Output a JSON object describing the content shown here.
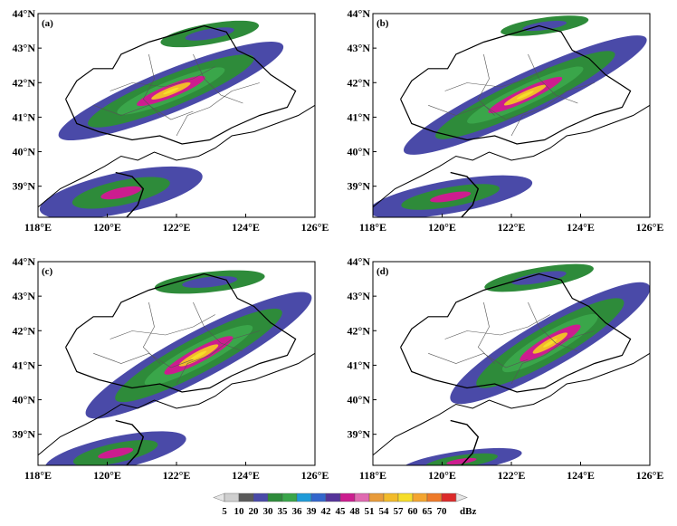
{
  "panels": [
    {
      "label": "(a)"
    },
    {
      "label": "(b)"
    },
    {
      "label": "(c)"
    },
    {
      "label": "(d)"
    }
  ],
  "axes": {
    "y_ticks": [
      "44°N",
      "43°N",
      "42°N",
      "41°N",
      "40°N",
      "39°N"
    ],
    "x_ticks": [
      "118°E",
      "120°E",
      "122°E",
      "124°E",
      "126°E"
    ]
  },
  "colorbar": {
    "values": [
      "5",
      "10",
      "20",
      "30",
      "35",
      "36",
      "39",
      "42",
      "45",
      "48",
      "51",
      "54",
      "57",
      "60",
      "65",
      "70"
    ],
    "unit": "dBz",
    "colors": [
      "#cfcfcf",
      "#5a5a5a",
      "#4a4aa8",
      "#2e8b3a",
      "#3aa64a",
      "#1f9bd8",
      "#3366cc",
      "#553399",
      "#cc1d8f",
      "#e06ab0",
      "#e89b3a",
      "#f2bb2a",
      "#f6de2a",
      "#f4a52f",
      "#ee7a2a",
      "#dc2a2a"
    ]
  }
}
